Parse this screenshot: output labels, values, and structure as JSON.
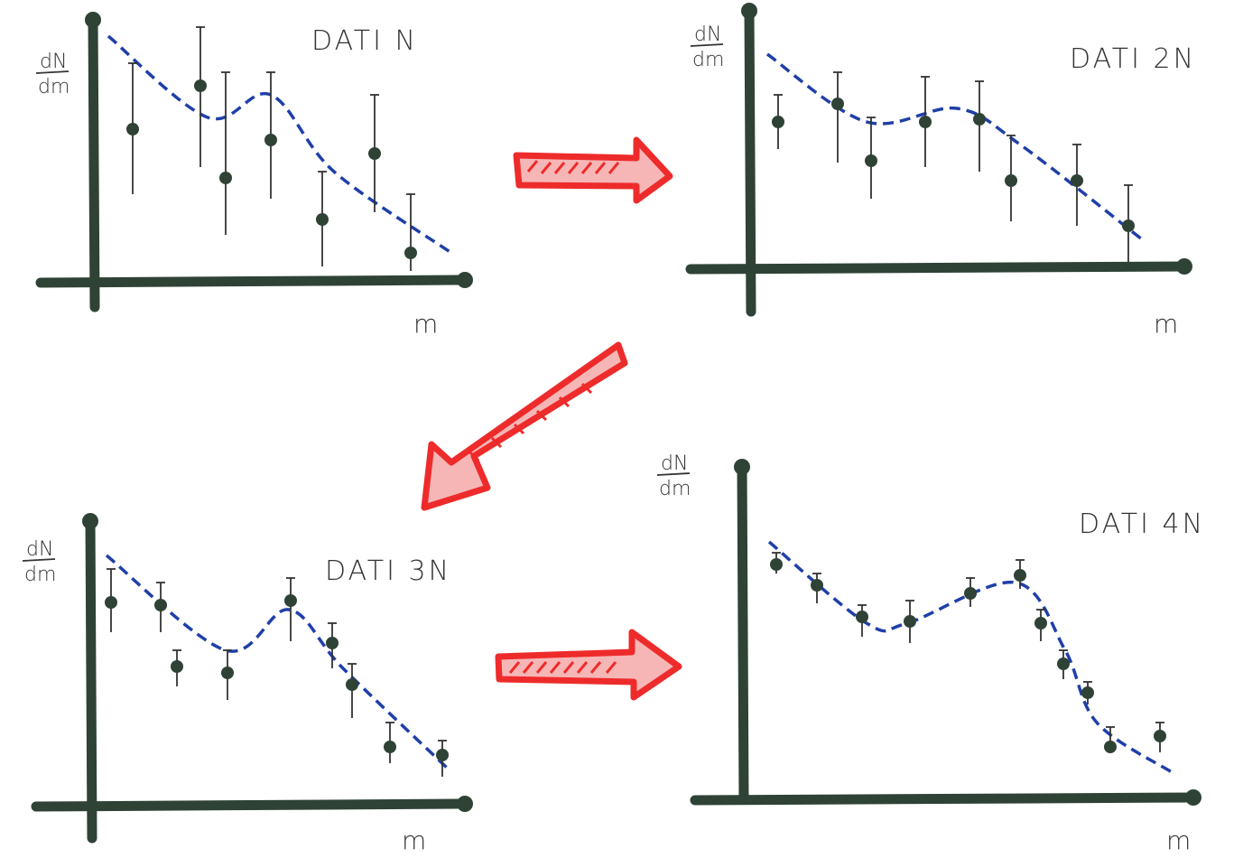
{
  "panels": [
    {
      "title": "DATI N",
      "y_label_top": "dN",
      "y_label_bottom": "dm",
      "x_label": "m"
    },
    {
      "title": "DATI 2N",
      "y_label_top": "dN",
      "y_label_bottom": "dm",
      "x_label": "m"
    },
    {
      "title": "DATI 3N",
      "y_label_top": "dN",
      "y_label_bottom": "dm",
      "x_label": "m"
    },
    {
      "title": "DATI 4N",
      "y_label_top": "dN",
      "y_label_bottom": "dm",
      "x_label": "m"
    }
  ]
}
